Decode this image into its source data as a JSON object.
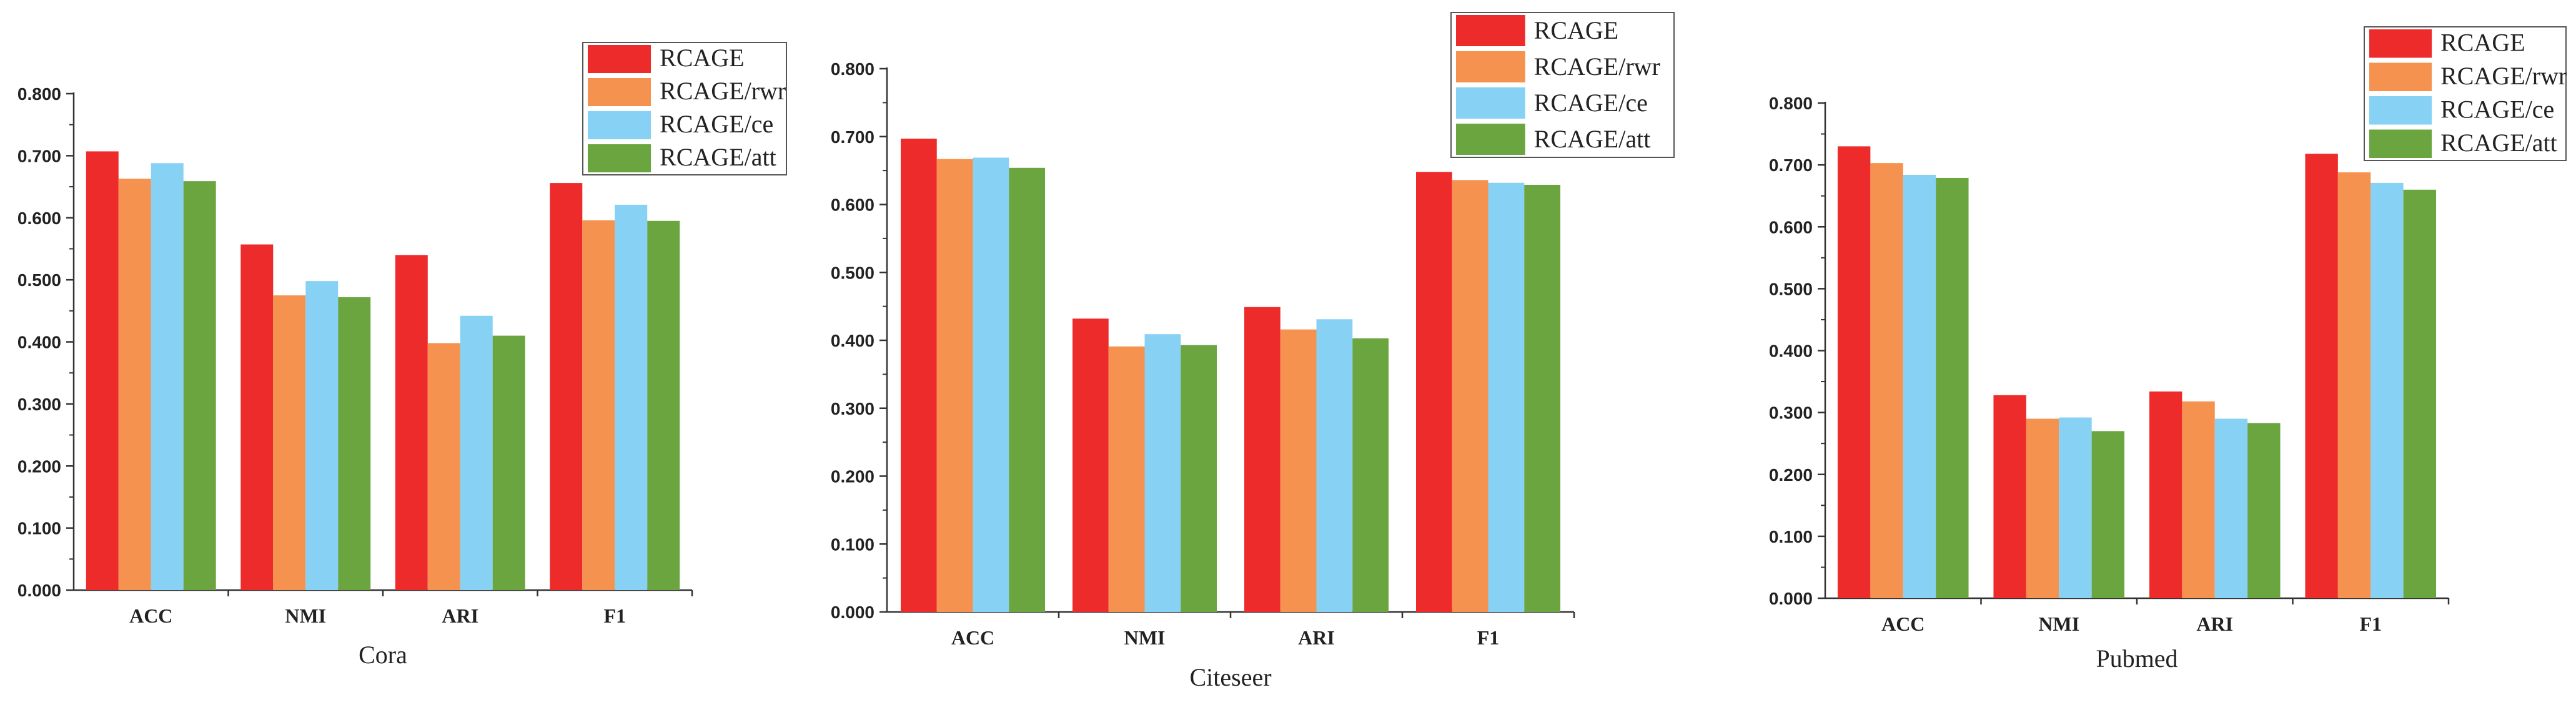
{
  "chart_data": [
    {
      "type": "bar",
      "title": "",
      "xlabel": "Cora",
      "ylabel": "",
      "ylim": [
        0,
        0.8
      ],
      "yticks": [
        "0.000",
        "0.100",
        "0.200",
        "0.300",
        "0.400",
        "0.500",
        "0.600",
        "0.700",
        "0.800"
      ],
      "categories": [
        "ACC",
        "NMI",
        "ARI",
        "F1"
      ],
      "legend_position": "top-right",
      "series": [
        {
          "name": "RCAGE",
          "color": "#ee2b2b",
          "values": [
            0.707,
            0.557,
            0.54,
            0.656
          ]
        },
        {
          "name": "RCAGE/rwr",
          "color": "#f5924f",
          "values": [
            0.663,
            0.475,
            0.398,
            0.596
          ]
        },
        {
          "name": "RCAGE/ce",
          "color": "#86d1f4",
          "values": [
            0.688,
            0.498,
            0.442,
            0.621
          ]
        },
        {
          "name": "RCAGE/att",
          "color": "#6aa540",
          "values": [
            0.659,
            0.472,
            0.41,
            0.595
          ]
        }
      ]
    },
    {
      "type": "bar",
      "title": "",
      "xlabel": "Citeseer",
      "ylabel": "",
      "ylim": [
        0,
        0.8
      ],
      "yticks": [
        "0.000",
        "0.100",
        "0.200",
        "0.300",
        "0.400",
        "0.500",
        "0.600",
        "0.700",
        "0.800"
      ],
      "categories": [
        "ACC",
        "NMI",
        "ARI",
        "F1"
      ],
      "legend_position": "top-right",
      "series": [
        {
          "name": "RCAGE",
          "color": "#ee2b2b",
          "values": [
            0.697,
            0.432,
            0.449,
            0.648
          ]
        },
        {
          "name": "RCAGE/rwr",
          "color": "#f5924f",
          "values": [
            0.667,
            0.391,
            0.416,
            0.636
          ]
        },
        {
          "name": "RCAGE/ce",
          "color": "#86d1f4",
          "values": [
            0.669,
            0.409,
            0.431,
            0.632
          ]
        },
        {
          "name": "RCAGE/att",
          "color": "#6aa540",
          "values": [
            0.654,
            0.393,
            0.403,
            0.629
          ]
        }
      ]
    },
    {
      "type": "bar",
      "title": "",
      "xlabel": "Pubmed",
      "ylabel": "",
      "ylim": [
        0,
        0.8
      ],
      "yticks": [
        "0.000",
        "0.100",
        "0.200",
        "0.300",
        "0.400",
        "0.500",
        "0.600",
        "0.700",
        "0.800"
      ],
      "categories": [
        "ACC",
        "NMI",
        "ARI",
        "F1"
      ],
      "legend_position": "top-right",
      "series": [
        {
          "name": "RCAGE",
          "color": "#ee2b2b",
          "values": [
            0.73,
            0.328,
            0.334,
            0.718
          ]
        },
        {
          "name": "RCAGE/rwr",
          "color": "#f5924f",
          "values": [
            0.703,
            0.29,
            0.318,
            0.688
          ]
        },
        {
          "name": "RCAGE/ce",
          "color": "#86d1f4",
          "values": [
            0.684,
            0.292,
            0.29,
            0.671
          ]
        },
        {
          "name": "RCAGE/att",
          "color": "#6aa540",
          "values": [
            0.679,
            0.27,
            0.283,
            0.66
          ]
        }
      ]
    }
  ]
}
